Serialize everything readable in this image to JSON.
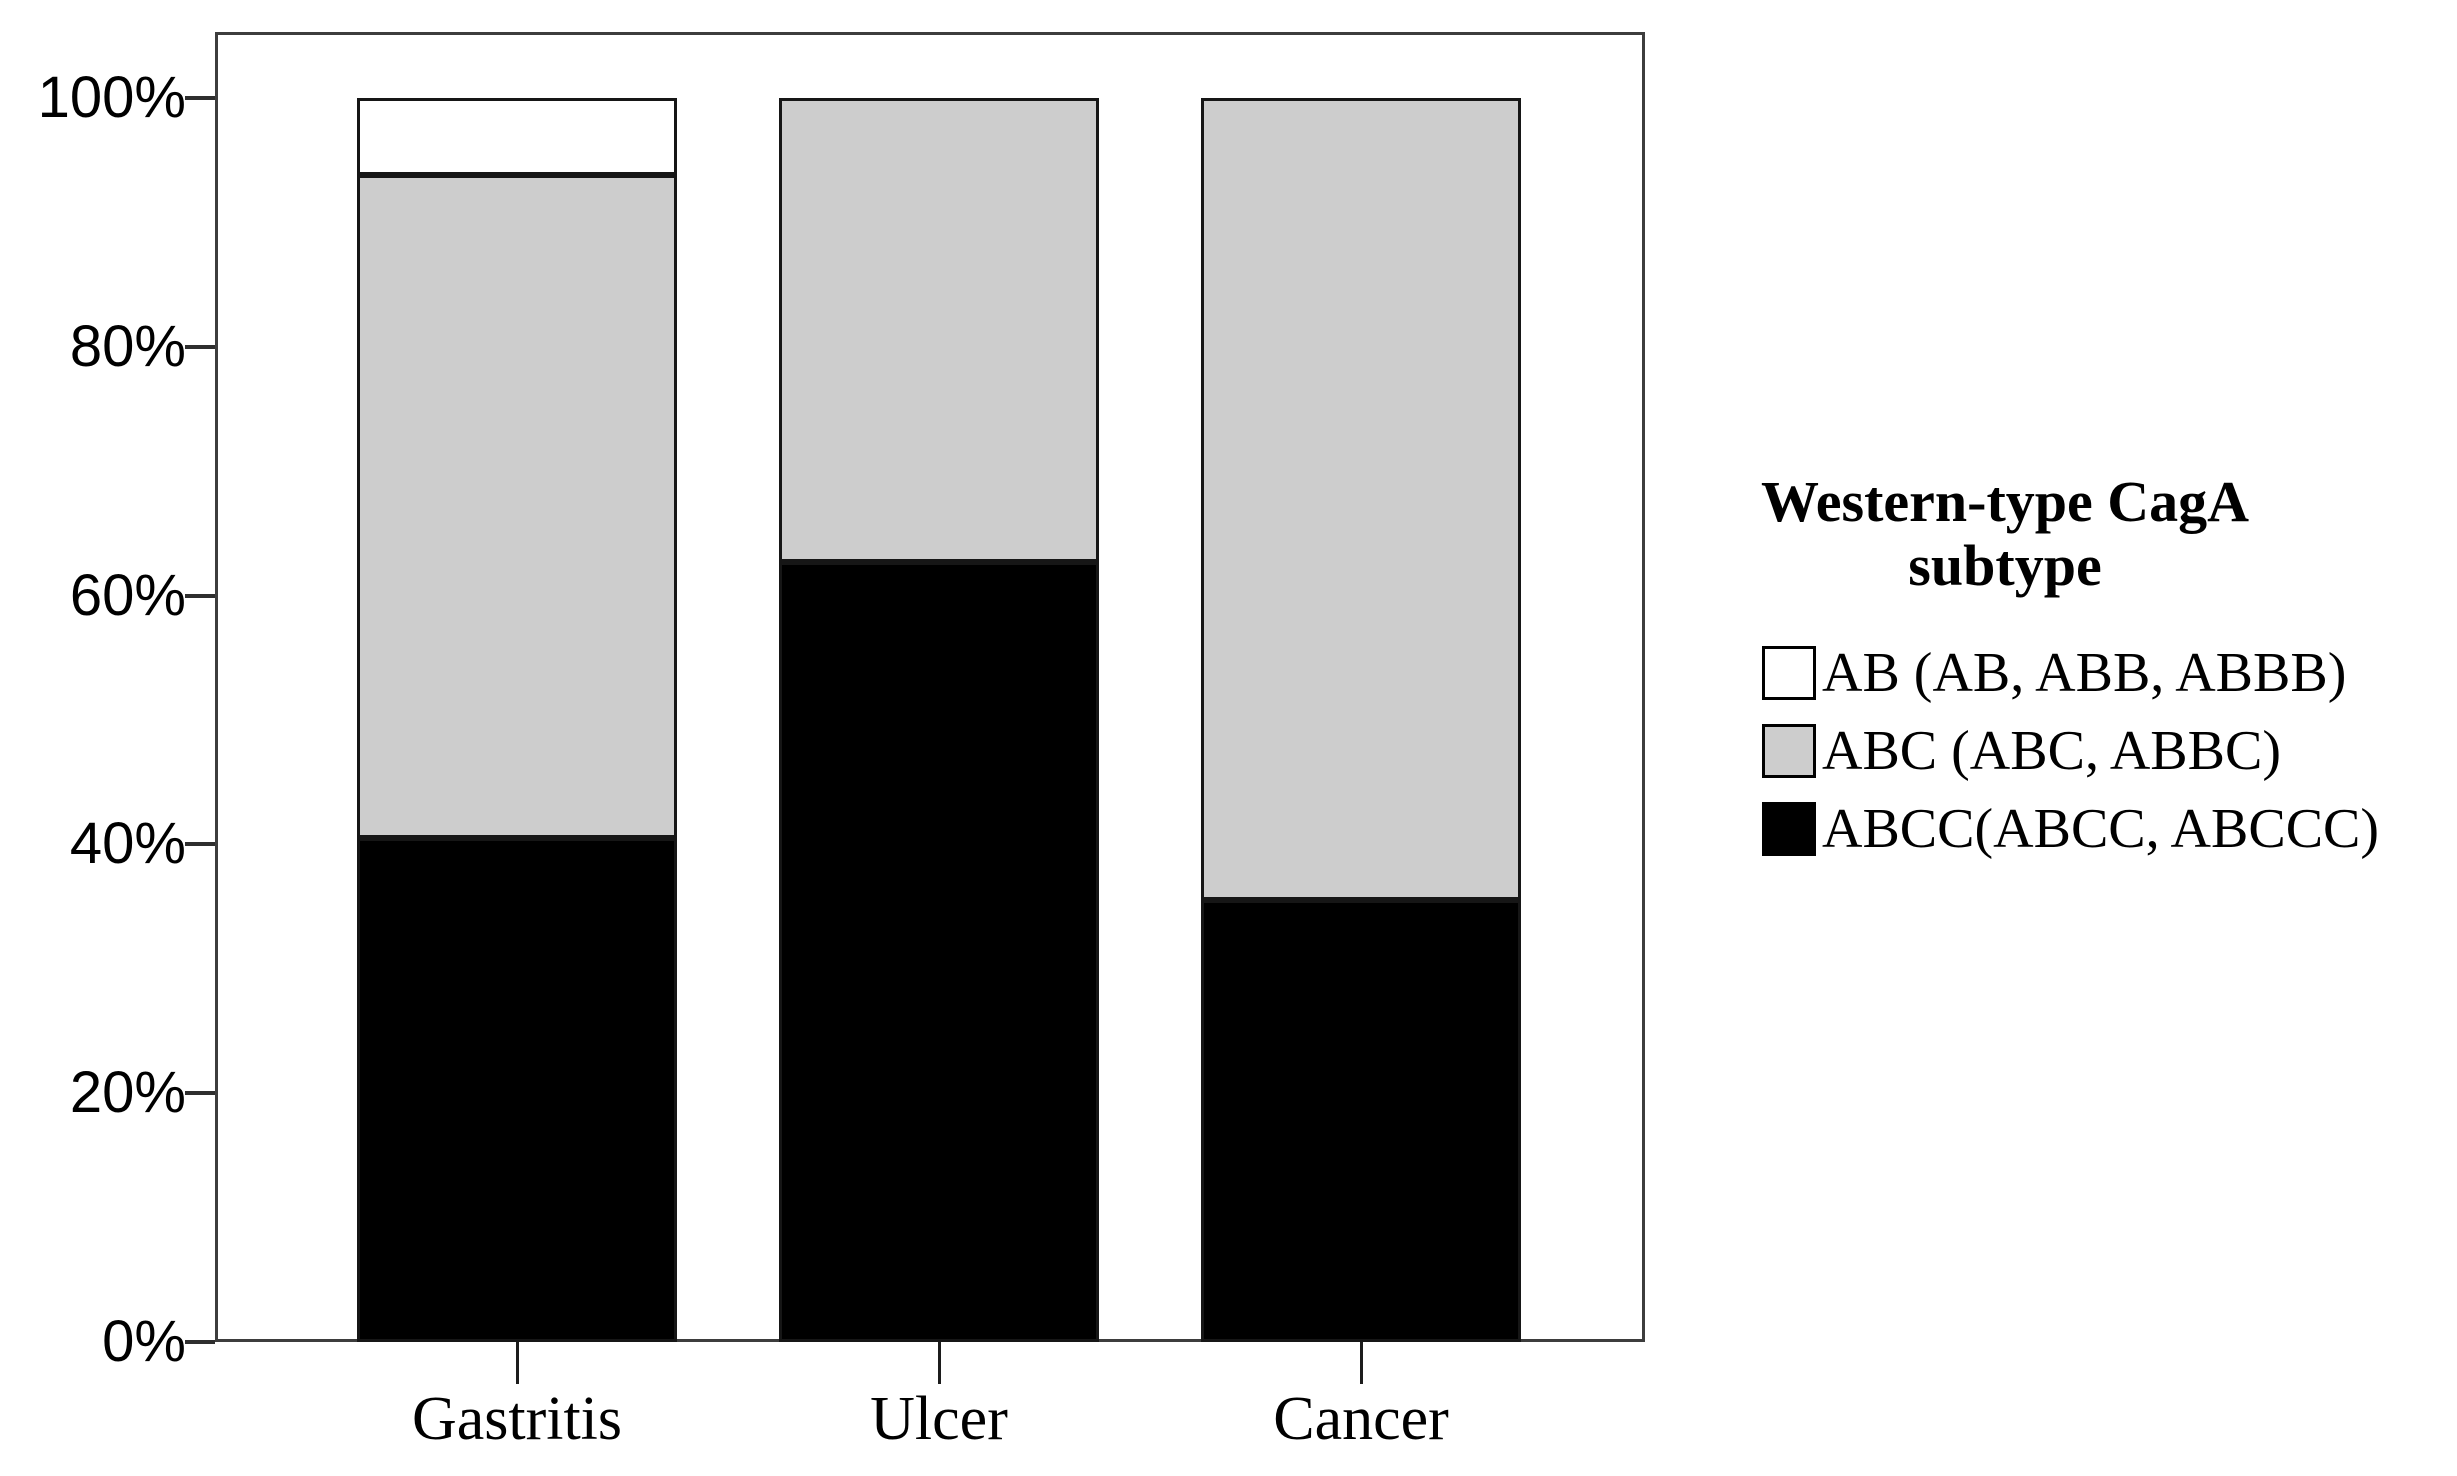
{
  "chart_data": {
    "type": "bar",
    "subtype": "stacked-100-percent-column",
    "title": "",
    "xlabel": "",
    "ylabel": "",
    "categories": [
      "Gastritis",
      "Ulcer",
      "Cancer"
    ],
    "series": [
      {
        "name": "ABCC(ABCC, ABCCC)",
        "color": "#000000",
        "values": [
          40.5,
          62.7,
          35.5
        ]
      },
      {
        "name": "ABC (ABC, ABBC)",
        "color": "#cdcdcd",
        "values": [
          53.3,
          37.3,
          64.5
        ]
      },
      {
        "name": "AB (AB, ABB, ABBB)",
        "color": "#ffffff",
        "values": [
          6.2,
          0,
          0
        ]
      }
    ],
    "stacking_order": "first-series-at-bottom",
    "y_ticks": [
      "0%",
      "20%",
      "40%",
      "60%",
      "80%",
      "100%"
    ],
    "ylim": [
      0,
      100
    ],
    "grid": false,
    "legend": {
      "position": "right",
      "title_lines": [
        "Western-type CagA",
        "subtype"
      ],
      "entries_top_to_bottom": [
        "AB (AB, ABB, ABBB)",
        "ABC (ABC, ABBC)",
        "ABCC(ABCC, ABCCC)"
      ]
    },
    "colors": {
      "bar_border": "#161616",
      "frame_border": "#3d3d3d",
      "text": "#000000",
      "background": "#ffffff"
    }
  }
}
